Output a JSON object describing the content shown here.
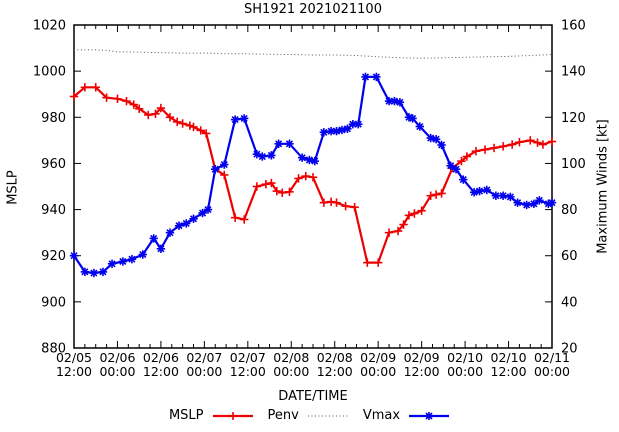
{
  "title": "SH1921 2021021100",
  "axes": {
    "x": {
      "label": "DATE/TIME",
      "tick_labels": [
        [
          "02/05",
          "12:00"
        ],
        [
          "02/06",
          "00:00"
        ],
        [
          "02/06",
          "12:00"
        ],
        [
          "02/07",
          "00:00"
        ],
        [
          "02/07",
          "12:00"
        ],
        [
          "02/08",
          "00:00"
        ],
        [
          "02/08",
          "12:00"
        ],
        [
          "02/09",
          "00:00"
        ],
        [
          "02/09",
          "12:00"
        ],
        [
          "02/10",
          "00:00"
        ],
        [
          "02/10",
          "12:00"
        ],
        [
          "02/11",
          "00:00"
        ]
      ],
      "hours_span": 132,
      "major_tick_step_hours": 12,
      "minor_tick_step_hours": 3
    },
    "y_left": {
      "label": "MSLP",
      "min": 880,
      "max": 1020,
      "ticks": [
        880,
        900,
        920,
        940,
        960,
        980,
        1000,
        1020
      ]
    },
    "y_right": {
      "label": "Maximum Winds [kt]",
      "min": 20,
      "max": 160,
      "ticks": [
        20,
        40,
        60,
        80,
        100,
        120,
        140,
        160
      ]
    }
  },
  "legend": [
    {
      "label": "MSLP",
      "color": "#ee0000",
      "style": "solid",
      "marker": "plus"
    },
    {
      "label": "Penv",
      "color": "#555555",
      "style": "dotted",
      "marker": "none"
    },
    {
      "label": "Vmax",
      "color": "#0000ee",
      "style": "solid",
      "marker": "asterisk"
    }
  ],
  "chart_data": {
    "type": "line",
    "title": "SH1921 2021021100",
    "x_unit": "hours since 2021-02-05 12:00",
    "xlabel": "DATE/TIME",
    "ylabel_left": "MSLP",
    "ylabel_right": "Maximum Winds [kt]",
    "ylim_left": [
      880,
      1020
    ],
    "ylim_right": [
      20,
      160
    ],
    "grid": false,
    "legend_position": "bottom-center",
    "series": [
      {
        "name": "MSLP",
        "axis": "left",
        "unit": "hPa",
        "color": "#ee0000",
        "marker": "plus",
        "line": "solid",
        "points": [
          [
            0,
            989
          ],
          [
            3,
            993
          ],
          [
            6,
            993
          ],
          [
            9,
            988.5
          ],
          [
            12,
            988
          ],
          [
            14.5,
            987
          ],
          [
            16.5,
            985.5
          ],
          [
            18,
            983.7
          ],
          [
            20.5,
            981
          ],
          [
            22.5,
            981.5
          ],
          [
            24,
            984
          ],
          [
            26.5,
            980
          ],
          [
            28.5,
            978
          ],
          [
            30,
            977.3
          ],
          [
            32,
            976.4
          ],
          [
            33,
            975.8
          ],
          [
            35,
            974.3
          ],
          [
            36.5,
            973
          ],
          [
            39,
            957.5
          ],
          [
            41.5,
            955
          ],
          [
            44.5,
            936.5
          ],
          [
            47,
            935.7
          ],
          [
            50.5,
            950
          ],
          [
            53,
            951
          ],
          [
            54.5,
            951.5
          ],
          [
            56,
            948
          ],
          [
            57.5,
            947.3
          ],
          [
            59.5,
            947.7
          ],
          [
            62,
            953.5
          ],
          [
            64,
            954.5
          ],
          [
            66,
            954
          ],
          [
            69,
            943
          ],
          [
            71,
            943.4
          ],
          [
            72.5,
            943
          ],
          [
            75,
            941.5
          ],
          [
            77.5,
            941
          ],
          [
            81,
            917
          ],
          [
            84,
            917
          ],
          [
            87,
            930
          ],
          [
            89.5,
            930.7
          ],
          [
            91,
            933.5
          ],
          [
            92.5,
            937.5
          ],
          [
            94,
            938.3
          ],
          [
            96,
            939.5
          ],
          [
            98.5,
            946
          ],
          [
            100,
            946.5
          ],
          [
            101.5,
            947
          ],
          [
            104.5,
            958
          ],
          [
            107,
            961
          ],
          [
            108.5,
            963
          ],
          [
            111,
            965.3
          ],
          [
            113.5,
            966
          ],
          [
            116,
            966.7
          ],
          [
            118.5,
            967.4
          ],
          [
            121,
            968.2
          ],
          [
            123,
            969.2
          ],
          [
            126,
            970
          ],
          [
            128,
            969
          ],
          [
            129.5,
            968.2
          ],
          [
            132,
            969.5
          ]
        ]
      },
      {
        "name": "Penv",
        "axis": "left",
        "unit": "hPa",
        "color": "#555555",
        "marker": "none",
        "line": "dotted",
        "points": [
          [
            0,
            1009.2
          ],
          [
            6,
            1009.2
          ],
          [
            9,
            1009
          ],
          [
            12,
            1008.4
          ],
          [
            18,
            1008.2
          ],
          [
            24,
            1008
          ],
          [
            30,
            1007.8
          ],
          [
            36,
            1007.8
          ],
          [
            42,
            1007.5
          ],
          [
            48,
            1007.5
          ],
          [
            54,
            1007.3
          ],
          [
            60,
            1007.2
          ],
          [
            66,
            1007
          ],
          [
            72,
            1007
          ],
          [
            78,
            1006.8
          ],
          [
            84,
            1006.2
          ],
          [
            90,
            1005.8
          ],
          [
            96,
            1005.6
          ],
          [
            102,
            1005.8
          ],
          [
            108,
            1006
          ],
          [
            114,
            1006.2
          ],
          [
            120,
            1006.4
          ],
          [
            126,
            1006.8
          ],
          [
            132,
            1007.2
          ]
        ]
      },
      {
        "name": "Vmax",
        "axis": "right",
        "unit": "kt",
        "color": "#0000ee",
        "marker": "asterisk",
        "line": "solid",
        "points": [
          [
            0,
            60
          ],
          [
            3,
            53
          ],
          [
            5.5,
            52.5
          ],
          [
            8,
            53
          ],
          [
            10.5,
            56.5
          ],
          [
            13.5,
            57.5
          ],
          [
            16,
            58.5
          ],
          [
            19,
            60.5
          ],
          [
            22,
            67.5
          ],
          [
            24,
            63
          ],
          [
            26.5,
            70
          ],
          [
            29,
            73
          ],
          [
            31,
            74
          ],
          [
            33,
            76
          ],
          [
            35.5,
            78.5
          ],
          [
            37,
            80
          ],
          [
            39,
            97.5
          ],
          [
            41.5,
            99.5
          ],
          [
            44.5,
            119
          ],
          [
            47,
            119.5
          ],
          [
            50.5,
            104
          ],
          [
            52,
            103
          ],
          [
            54.5,
            103.5
          ],
          [
            56.5,
            108.5
          ],
          [
            59.5,
            108.5
          ],
          [
            63,
            102.5
          ],
          [
            65,
            101.5
          ],
          [
            66.5,
            101
          ],
          [
            69,
            113.5
          ],
          [
            71,
            114
          ],
          [
            72.5,
            114
          ],
          [
            74,
            114.5
          ],
          [
            75.5,
            115
          ],
          [
            77,
            117
          ],
          [
            78.5,
            117
          ],
          [
            80.5,
            137.5
          ],
          [
            83.5,
            137.5
          ],
          [
            87,
            127
          ],
          [
            88.5,
            127
          ],
          [
            90,
            126.5
          ],
          [
            92.5,
            120
          ],
          [
            93.5,
            119.5
          ],
          [
            95.5,
            116
          ],
          [
            98.5,
            111
          ],
          [
            100,
            110.5
          ],
          [
            101.5,
            108
          ],
          [
            104,
            99
          ],
          [
            105.5,
            97.5
          ],
          [
            107.5,
            93
          ],
          [
            110.5,
            87.5
          ],
          [
            112,
            88
          ],
          [
            114,
            88.5
          ],
          [
            116.5,
            86
          ],
          [
            118.5,
            86
          ],
          [
            120.5,
            85.5
          ],
          [
            122.5,
            83
          ],
          [
            125,
            82
          ],
          [
            127,
            82.5
          ],
          [
            128.5,
            84
          ],
          [
            131,
            82.5
          ],
          [
            132,
            83
          ]
        ]
      }
    ]
  }
}
